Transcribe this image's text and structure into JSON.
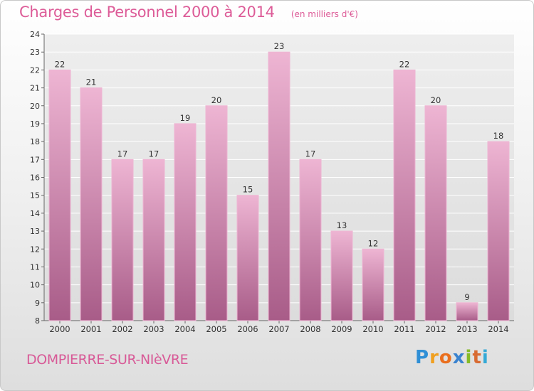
{
  "title": "Charges de Personnel 2000 à 2014",
  "subtitle": "(en milliers d'€)",
  "town": "DOMPIERRE-SUR-NIèVRE",
  "logo": {
    "letters": [
      "P",
      "r",
      "o",
      "x",
      "i",
      "t",
      "i"
    ],
    "colors": [
      "#2f8fd6",
      "#f0a020",
      "#ea6f1e",
      "#3a83cf",
      "#86bb26",
      "#d86b32",
      "#34a9d6"
    ]
  },
  "colors": {
    "bar": "#d87fae",
    "bar_light": "#eeb5d3",
    "bar_dark": "#a85c88",
    "plot_bg": "#e4e4e4",
    "grid": "#ffffff"
  },
  "chart_data": {
    "type": "bar",
    "categories": [
      "2000",
      "2001",
      "2002",
      "2003",
      "2004",
      "2005",
      "2006",
      "2007",
      "2008",
      "2009",
      "2010",
      "2011",
      "2012",
      "2013",
      "2014"
    ],
    "values": [
      22,
      21,
      17,
      17,
      19,
      20,
      15,
      23,
      17,
      13,
      12,
      22,
      20,
      9,
      18
    ],
    "ylim": [
      8,
      24
    ],
    "yticks": [
      8,
      9,
      10,
      11,
      12,
      13,
      14,
      15,
      16,
      17,
      18,
      19,
      20,
      21,
      22,
      23,
      24
    ],
    "xlabel": "",
    "ylabel": "",
    "grid": true
  }
}
